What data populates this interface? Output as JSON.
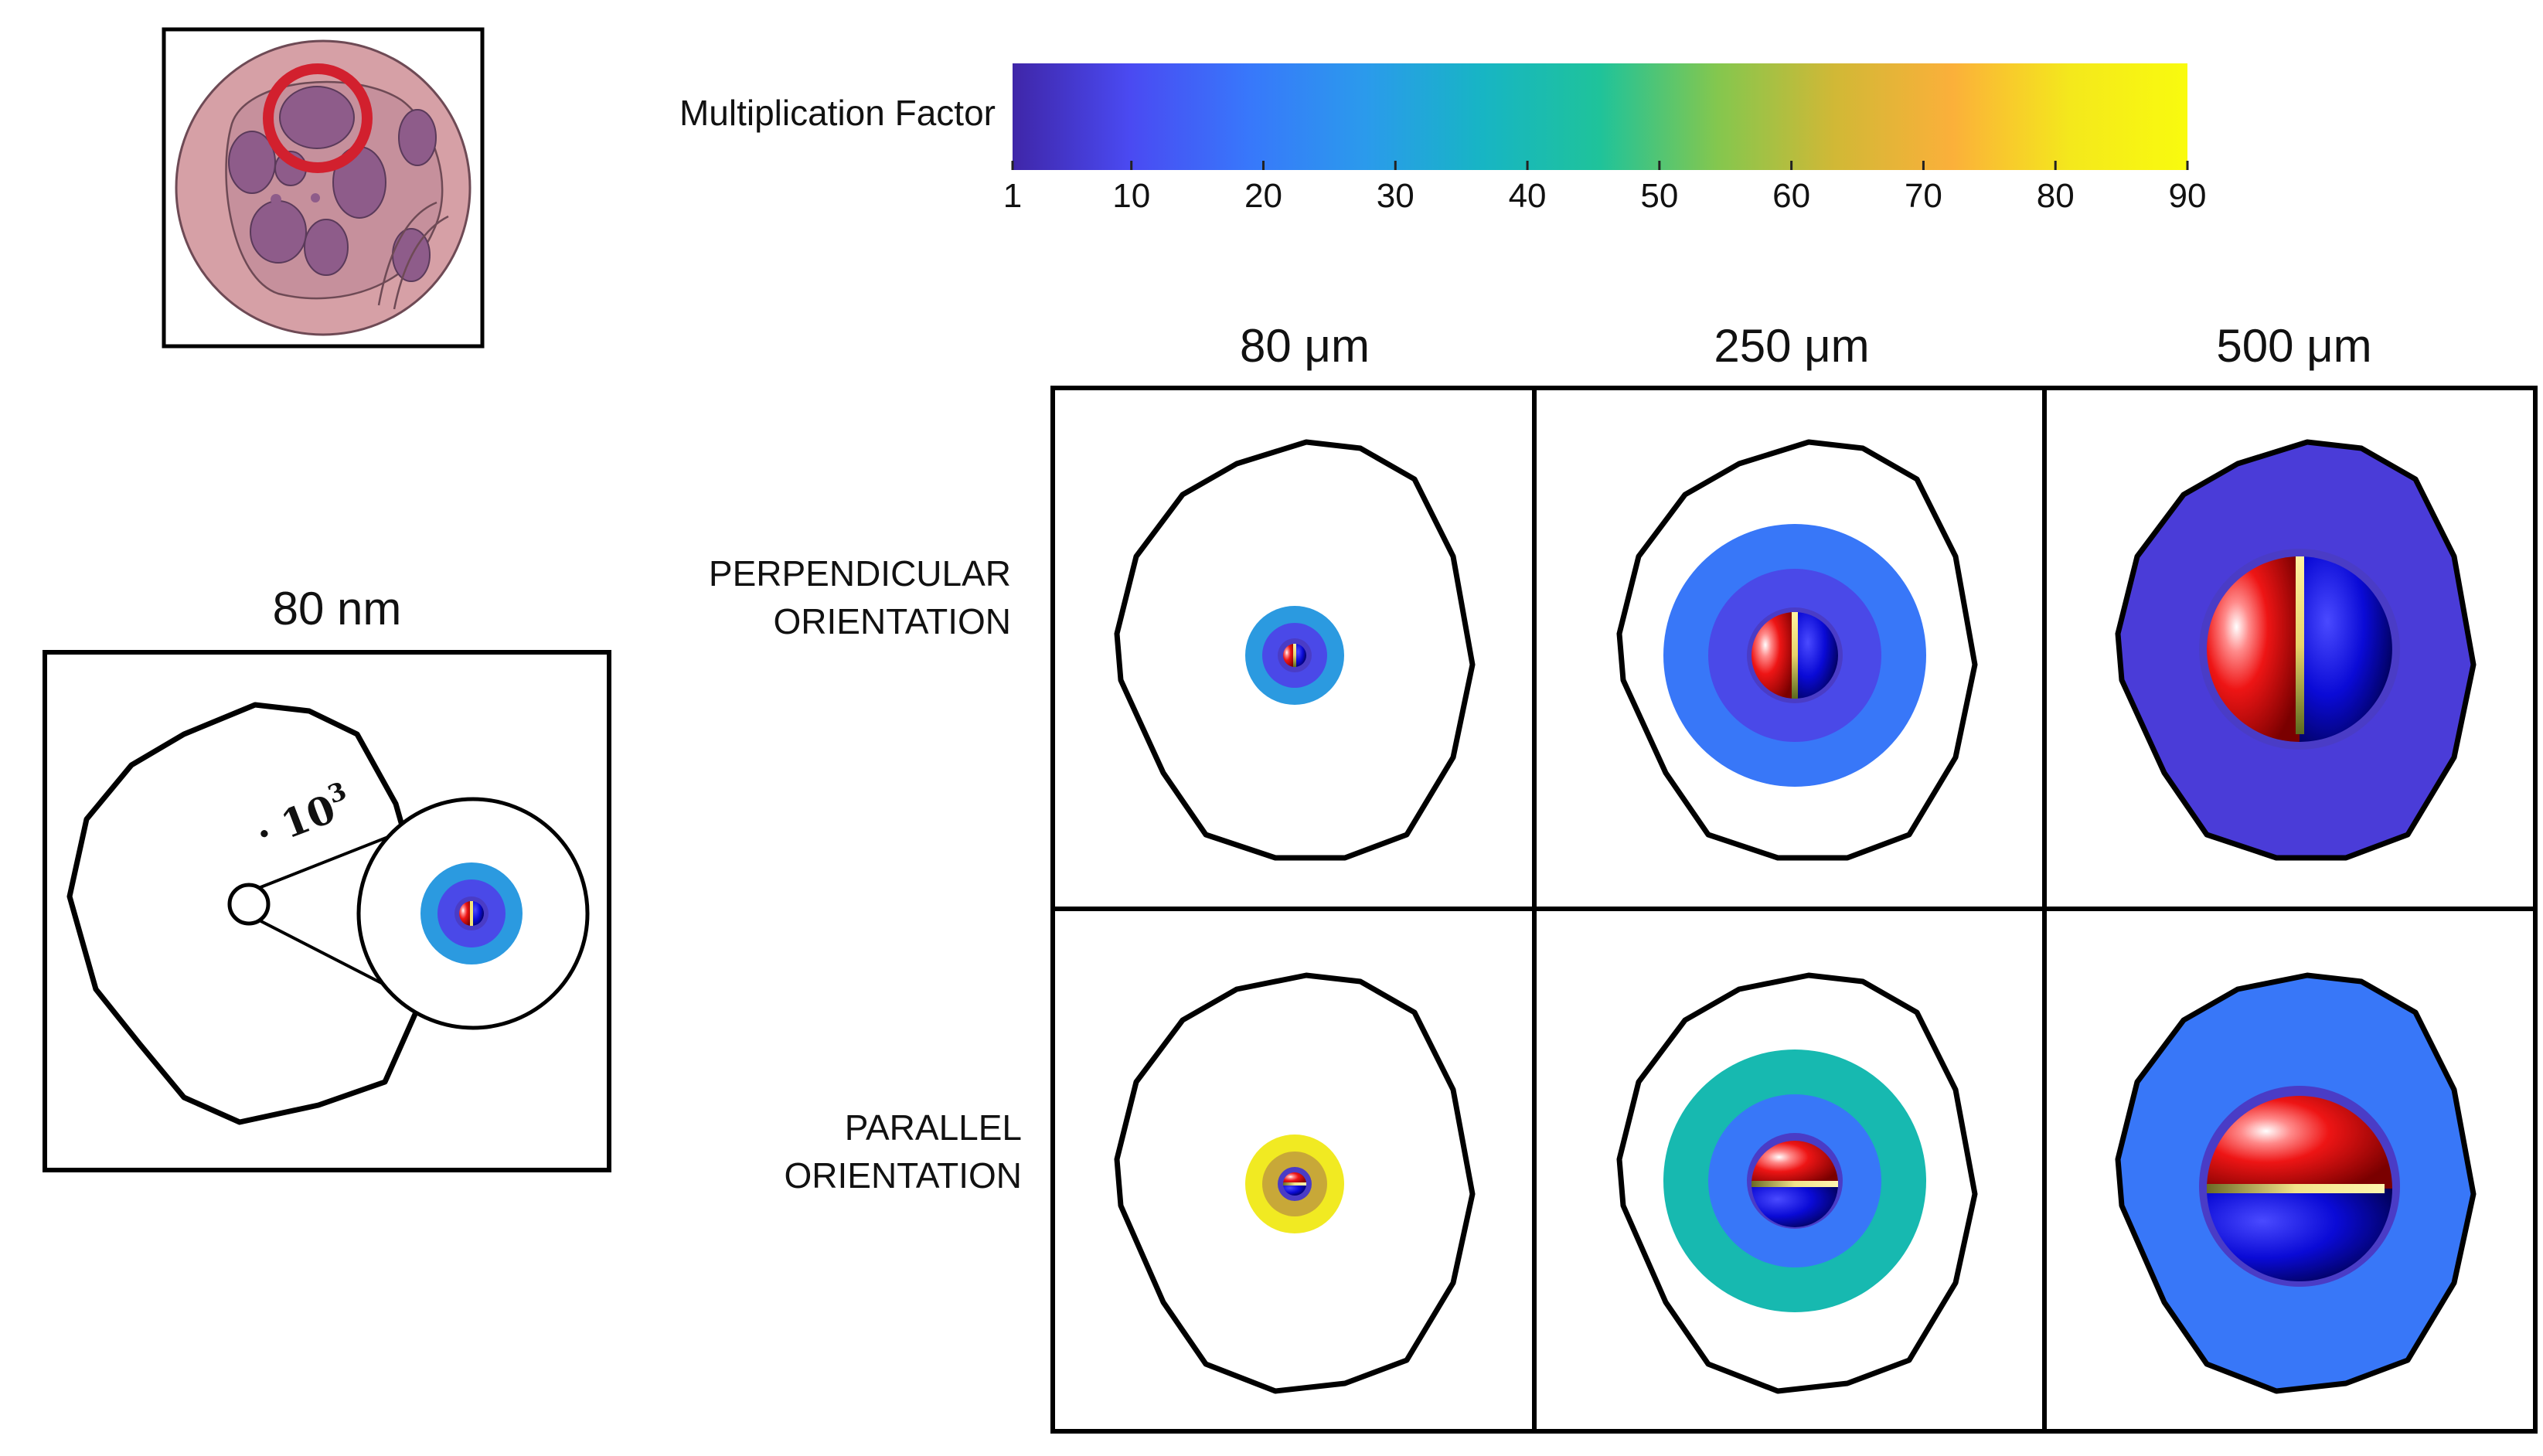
{
  "colorbar": {
    "label": "Multiplication Factor",
    "ticks": [
      "1",
      "10",
      "20",
      "30",
      "40",
      "50",
      "60",
      "70",
      "80",
      "90"
    ],
    "colormap": [
      "#3f26a8",
      "#4a4af2",
      "#3877fb",
      "#2b9aec",
      "#17b5c4",
      "#1fc39a",
      "#84c74e",
      "#d1b836",
      "#fbb03a",
      "#f4e81c",
      "#f9fb0e"
    ]
  },
  "inset": {
    "title": "80 nm",
    "magnification_prefix": "· 10",
    "magnification_exp": "3"
  },
  "grid": {
    "columns": [
      "80 μm",
      "250 μm",
      "500 μm"
    ],
    "rows": [
      {
        "line1": "PERPENDICULAR",
        "line2": "ORIENTATION",
        "split": "vertical"
      },
      {
        "line1": "PARALLEL",
        "line2": "ORIENTATION",
        "split": "horizontal"
      }
    ]
  },
  "colors": {
    "red": "#ee1515",
    "blue": "#0a0ad6",
    "electrode": "#f4e678",
    "outline": "#000000",
    "cell_tint": "#d9a0a8",
    "ring_marker": "#d2202e"
  }
}
